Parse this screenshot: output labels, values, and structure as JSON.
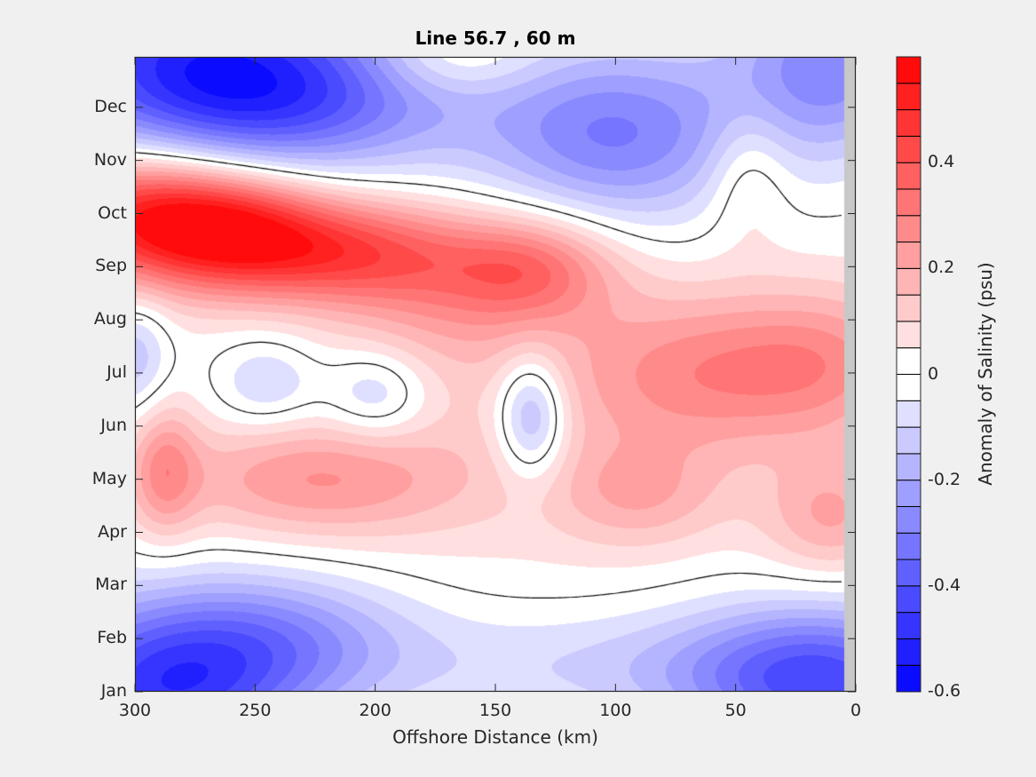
{
  "chart_data": {
    "type": "heatmap",
    "subtype": "filled-contour",
    "title": "Line 56.7 , 60 m",
    "xlabel": "Offshore Distance (km)",
    "ylabel": "",
    "colorbar_label": "Anomaly of Salinity (psu)",
    "xlim": [
      300,
      0
    ],
    "x_reversed": true,
    "ylim": [
      0,
      11.95
    ],
    "xticks": [
      300,
      250,
      200,
      150,
      100,
      50,
      0
    ],
    "xtick_labels": [
      "300",
      "250",
      "200",
      "150",
      "100",
      "50",
      "0"
    ],
    "yticks": [
      0,
      1,
      2,
      3,
      4,
      5,
      6,
      7,
      8,
      9,
      10,
      11
    ],
    "ytick_labels": [
      "Jan",
      "Feb",
      "Mar",
      "Apr",
      "May",
      "Jun",
      "Jul",
      "Aug",
      "Sep",
      "Oct",
      "Nov",
      "Dec"
    ],
    "clim": [
      -0.6,
      0.6
    ],
    "contour_step": 0.05,
    "colorbar_ticks": [
      0.4,
      0.2,
      0,
      -0.2,
      -0.4,
      -0.6
    ],
    "colorbar_tick_labels": [
      "0.4",
      "0.2",
      "0",
      "-0.2",
      "-0.4",
      "-0.6"
    ],
    "zero_contour_line": true,
    "no_data_region_km": [
      0,
      5
    ],
    "colors": {
      "negative_max": "#0000ff",
      "zero": "#ffffff",
      "positive_max": "#ff0000",
      "contour_line": "#000000",
      "no_data": "#c8c8c8"
    },
    "field_features": [
      {
        "km": 300,
        "month": 9.0,
        "amp": 0.45,
        "skm": 30,
        "smon": 0.9
      },
      {
        "km": 258,
        "month": 8.7,
        "amp": 0.42,
        "skm": 28,
        "smon": 0.8
      },
      {
        "km": 210,
        "month": 8.3,
        "amp": 0.34,
        "skm": 35,
        "smon": 0.7
      },
      {
        "km": 135,
        "month": 8.0,
        "amp": 0.26,
        "skm": 25,
        "smon": 0.7
      },
      {
        "km": 170,
        "month": 7.3,
        "amp": 0.14,
        "skm": 35,
        "smon": 1.0
      },
      {
        "km": 65,
        "month": 6.0,
        "amp": 0.22,
        "skm": 40,
        "smon": 1.1
      },
      {
        "km": 10,
        "month": 6.2,
        "amp": 0.18,
        "skm": 30,
        "smon": 1.0
      },
      {
        "km": 225,
        "month": 4.0,
        "amp": 0.22,
        "skm": 45,
        "smon": 0.8
      },
      {
        "km": 288,
        "month": 4.2,
        "amp": 0.2,
        "skm": 10,
        "smon": 0.9
      },
      {
        "km": 90,
        "month": 3.7,
        "amp": 0.14,
        "skm": 25,
        "smon": 0.7
      },
      {
        "km": 10,
        "month": 3.3,
        "amp": 0.18,
        "skm": 20,
        "smon": 0.8
      },
      {
        "km": 130,
        "month": 5.0,
        "amp": 0.06,
        "skm": 60,
        "smon": 2.0
      },
      {
        "km": 135,
        "month": 5.2,
        "amp": -0.26,
        "skm": 10,
        "smon": 0.8
      },
      {
        "km": 200,
        "month": 5.6,
        "amp": -0.16,
        "skm": 15,
        "smon": 0.6
      },
      {
        "km": 245,
        "month": 5.8,
        "amp": -0.14,
        "skm": 15,
        "smon": 0.6
      },
      {
        "km": 300,
        "month": 6.3,
        "amp": -0.16,
        "skm": 10,
        "smon": 0.8
      },
      {
        "km": 290,
        "month": 0.0,
        "amp": -0.45,
        "skm": 40,
        "smon": 1.2
      },
      {
        "km": 240,
        "month": 1.0,
        "amp": -0.22,
        "skm": 40,
        "smon": 0.9
      },
      {
        "km": 15,
        "month": 0.2,
        "amp": -0.4,
        "skm": 40,
        "smon": 1.0
      },
      {
        "km": 100,
        "month": 0.5,
        "amp": -0.12,
        "skm": 80,
        "smon": 0.8
      },
      {
        "km": 280,
        "month": 12.0,
        "amp": -0.42,
        "skm": 50,
        "smon": 1.5
      },
      {
        "km": 230,
        "month": 11.2,
        "amp": -0.3,
        "skm": 50,
        "smon": 1.0
      },
      {
        "km": 100,
        "month": 10.5,
        "amp": -0.32,
        "skm": 40,
        "smon": 1.2
      },
      {
        "km": 10,
        "month": 11.8,
        "amp": -0.3,
        "skm": 30,
        "smon": 1.2
      },
      {
        "km": 170,
        "month": 11.9,
        "amp": 0.12,
        "skm": 25,
        "smon": 0.5
      },
      {
        "km": 45,
        "month": 9.8,
        "amp": 0.12,
        "skm": 12,
        "smon": 0.9
      }
    ]
  }
}
